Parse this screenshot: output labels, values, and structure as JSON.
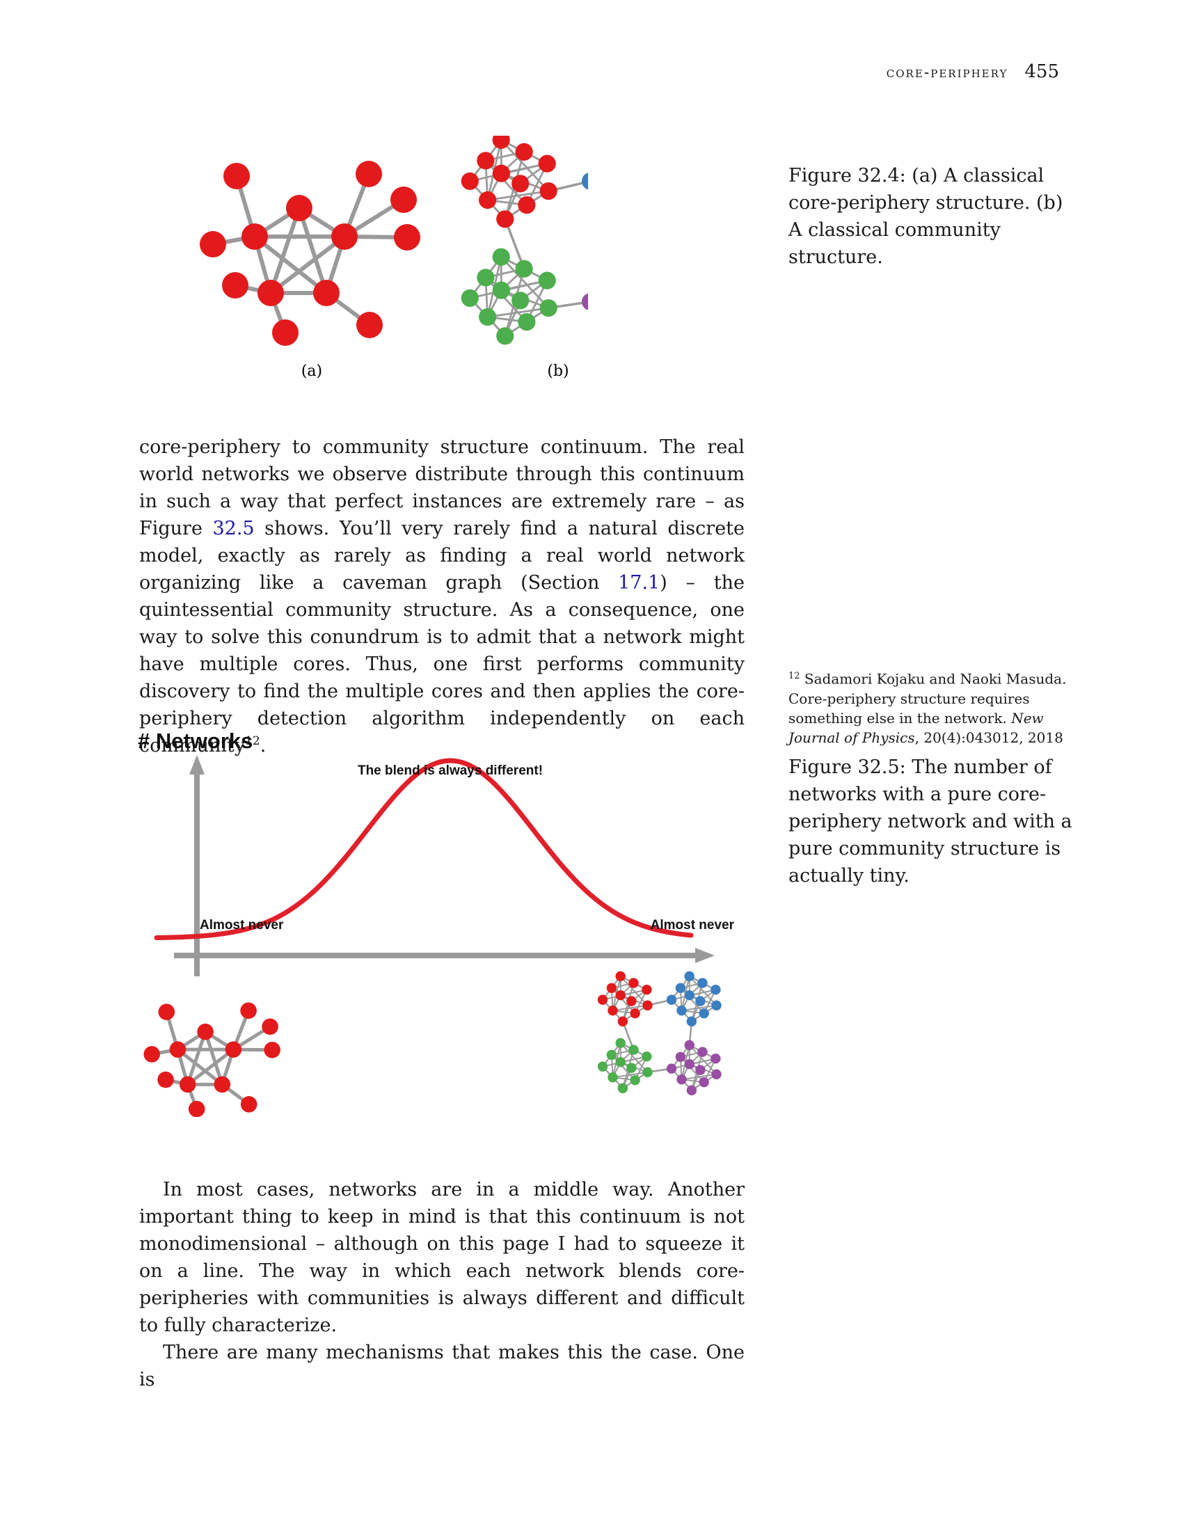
{
  "header": {
    "section": "core-periphery",
    "page_number": "455"
  },
  "figure1": {
    "sublabel_a": "(a)",
    "sublabel_b": "(b)",
    "caption": "Figure 32.4: (a) A classical core-periphery structure. (b) A classical community structure."
  },
  "body1": {
    "text_before_ref1": "core-periphery to community structure continuum. The real world networks we observe distribute through this continuum in such a way that perfect instances are extremely rare – as Figure ",
    "ref1": "32.5",
    "text_after_ref1": " shows. You’ll very rarely find a natural discrete model, exactly as rarely as finding a real world network organizing like a caveman graph (Section ",
    "ref2": "17.1",
    "text_after_ref2": ") – the quintessential community structure. As a consequence, one way to solve this conundrum is to admit that a network might have multiple cores. Thus, one first performs community discovery to find the multiple cores and then applies the core-periphery detection algorithm independently on each community",
    "footnote_mark": "12",
    "text_end": "."
  },
  "footnote": {
    "mark": "12",
    "text": " Sadamori Kojaku and Naoki Masuda. Core-periphery structure requires something else in the network. ",
    "journal": "New Journal of Physics",
    "details": ", 20(4):043012, 2018"
  },
  "figure2": {
    "ylabel": "# Networks",
    "peak_label": "The blend is always different!",
    "left_label": "Almost never",
    "right_label": "Almost never",
    "caption": "Figure 32.5: The number of networks with a pure core-periphery network and with a pure community structure is actually tiny."
  },
  "body2": {
    "para1": "In most cases, networks are in a middle way. Another important thing to keep in mind is that this continuum is not monodimensional – although on this page I had to squeeze it on a line. The way in which each network blends core-peripheries with communities is always different and difficult to fully characterize.",
    "para2": "There are many mechanisms that makes this the case. One is"
  },
  "colors": {
    "red": "#e31a1c",
    "blue": "#3a7fc1",
    "green": "#4cae4c",
    "purple": "#984ea3",
    "edge": "#9a9a9a",
    "curve": "#e0202a",
    "link": "#1a1aa6"
  }
}
